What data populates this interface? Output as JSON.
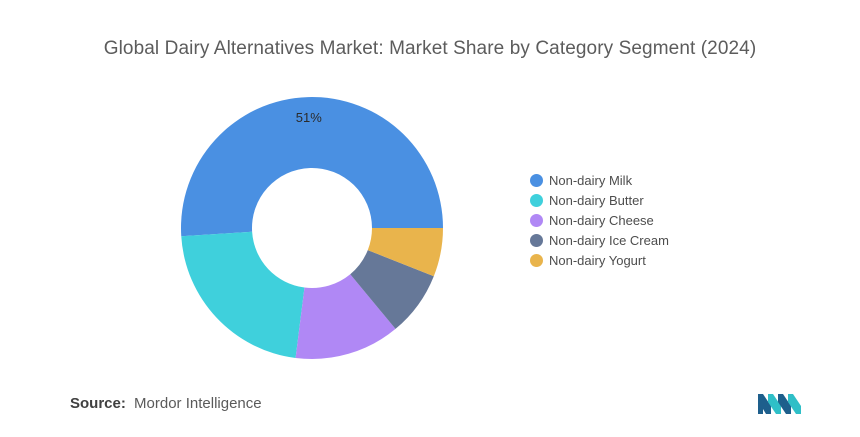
{
  "title": "Global Dairy Alternatives Market: Market Share by Category Segment (2024)",
  "source": {
    "label": "Source:",
    "value": "Mordor Intelligence"
  },
  "logo": {
    "icon": "mordor-intelligence-logo",
    "colors": [
      "#1e5f8c",
      "#2fbfc7"
    ]
  },
  "chart_data": {
    "type": "pie",
    "donut": true,
    "categories": [
      "Non-dairy Milk",
      "Non-dairy Butter",
      "Non-dairy Cheese",
      "Non-dairy Ice Cream",
      "Non-dairy Yogurt"
    ],
    "values": [
      51,
      22,
      13,
      8,
      6
    ],
    "colors": [
      "#4a90e2",
      "#3fd0dc",
      "#b088f5",
      "#667898",
      "#e9b44c"
    ],
    "data_labels": [
      "51%",
      "",
      "",
      "",
      ""
    ],
    "legend_position": "right",
    "start_angle_deg": 0
  }
}
